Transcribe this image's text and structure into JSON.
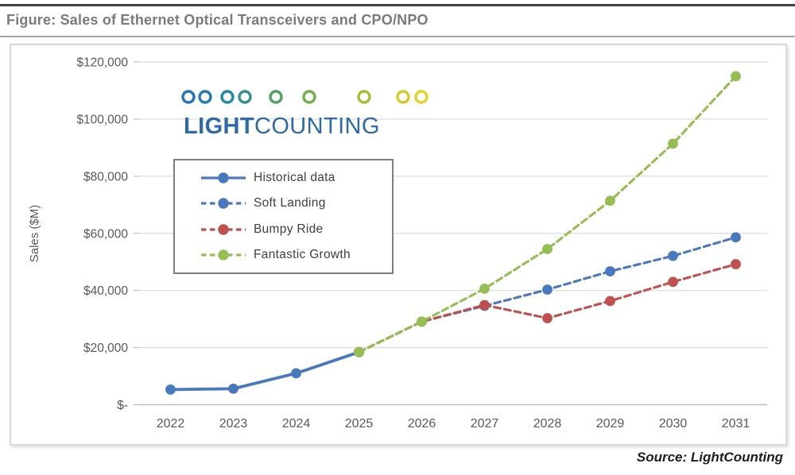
{
  "header": {
    "title": "Figure: Sales of Ethernet Optical Transceivers and CPO/NPO"
  },
  "footer": {
    "source": "Source: LightCounting"
  },
  "logo": {
    "word_bold": "LIGHT",
    "word_regular": "COUNTING",
    "text_color": "#2c6ba7",
    "ring_colors": [
      "#2274b6",
      "#1f7eaf",
      "#1e8aa6",
      "#2e9487",
      "#4fa263",
      "#74af4b",
      "#a4bf36",
      "#d3cb27",
      "#e6d221"
    ]
  },
  "chart_data": {
    "type": "line",
    "title": "",
    "xlabel": "",
    "ylabel": "Sales ($M)",
    "categories": [
      "2022",
      "2023",
      "2024",
      "2025",
      "2026",
      "2027",
      "2028",
      "2029",
      "2030",
      "2031"
    ],
    "ylim": [
      0,
      120000
    ],
    "grid": true,
    "legend_position": "upper-left-box",
    "y_ticks": [
      {
        "value": 0,
        "label": "$-"
      },
      {
        "value": 20000,
        "label": "$20,000"
      },
      {
        "value": 40000,
        "label": "$40,000"
      },
      {
        "value": 60000,
        "label": "$60,000"
      },
      {
        "value": 80000,
        "label": "$80,000"
      },
      {
        "value": 100000,
        "label": "$100,000"
      },
      {
        "value": 120000,
        "label": "$120,000"
      }
    ],
    "series": [
      {
        "name": "Historical data",
        "color": "#4879bd",
        "dash": "solid",
        "x": [
          "2022",
          "2023",
          "2024",
          "2025"
        ],
        "values": [
          5300,
          5600,
          11000,
          18400
        ]
      },
      {
        "name": "Soft Landing",
        "color": "#4879bd",
        "dash": "dashed",
        "x": [
          "2025",
          "2026",
          "2027",
          "2028",
          "2029",
          "2030",
          "2031"
        ],
        "values": [
          18400,
          29100,
          34600,
          40300,
          46700,
          52100,
          58600
        ]
      },
      {
        "name": "Bumpy Ride",
        "color": "#c0504d",
        "dash": "dashed",
        "x": [
          "2025",
          "2026",
          "2027",
          "2028",
          "2029",
          "2030",
          "2031"
        ],
        "values": [
          18400,
          29100,
          34900,
          30300,
          36300,
          43000,
          49200
        ]
      },
      {
        "name": "Fantastic Growth",
        "color": "#95be53",
        "dash": "dashed",
        "x": [
          "2025",
          "2026",
          "2027",
          "2028",
          "2029",
          "2030",
          "2031"
        ],
        "values": [
          18400,
          29100,
          40600,
          54500,
          71400,
          91400,
          115000
        ]
      }
    ]
  }
}
